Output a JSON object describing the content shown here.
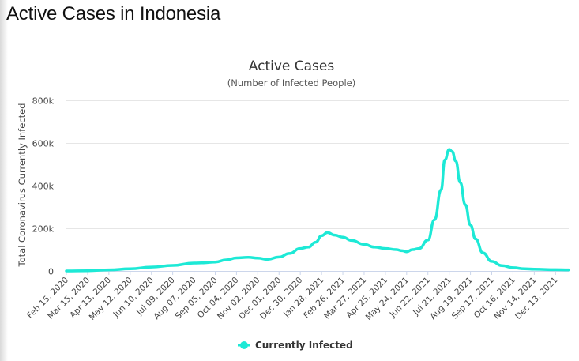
{
  "page": {
    "title": "Active Cases in Indonesia"
  },
  "colors": {
    "series": "#1de9d6",
    "grid": "#e6e6e6",
    "axis": "#ccd6eb"
  },
  "chart_data": {
    "type": "line",
    "title": "Active Cases",
    "subtitle": "(Number of Infected People)",
    "ylabel": "Total Coronavirus Currently Infected",
    "xlabel": "",
    "ylim": [
      0,
      800000
    ],
    "yticks": [
      0,
      200000,
      400000,
      600000,
      800000
    ],
    "ytick_labels": [
      "0",
      "200k",
      "400k",
      "600k",
      "800k"
    ],
    "x_range": [
      "Feb 15, 2020",
      "Dec 31, 2021"
    ],
    "xtick_labels": [
      "Feb 15, 2020",
      "Mar 15, 2020",
      "Apr 13, 2020",
      "May 12, 2020",
      "Jun 10, 2020",
      "Jul 09, 2020",
      "Aug 07, 2020",
      "Sep 05, 2020",
      "Oct 04, 2020",
      "Nov 02, 2020",
      "Dec 01, 2020",
      "Dec 30, 2020",
      "Jan 28, 2021",
      "Feb 26, 2021",
      "Mar 27, 2021",
      "Apr 25, 2021",
      "May 24, 2021",
      "Jun 22, 2021",
      "Jul 21, 2021",
      "Aug 19, 2021",
      "Sep 17, 2021",
      "Oct 16, 2021",
      "Nov 14, 2021",
      "Dec 13, 2021"
    ],
    "legend": {
      "label": "Currently Infected",
      "position": "bottom-center"
    },
    "series": [
      {
        "name": "Currently Infected",
        "x": [
          "Feb 15, 2020",
          "Mar 15, 2020",
          "Apr 13, 2020",
          "May 12, 2020",
          "Jun 10, 2020",
          "Jul 09, 2020",
          "Aug 07, 2020",
          "Aug 20, 2020",
          "Sep 05, 2020",
          "Sep 20, 2020",
          "Oct 04, 2020",
          "Oct 20, 2020",
          "Nov 02, 2020",
          "Nov 15, 2020",
          "Dec 01, 2020",
          "Dec 15, 2020",
          "Dec 30, 2020",
          "Jan 10, 2021",
          "Jan 20, 2021",
          "Jan 28, 2021",
          "Feb 05, 2021",
          "Feb 15, 2021",
          "Feb 26, 2021",
          "Mar 10, 2021",
          "Mar 27, 2021",
          "Apr 10, 2021",
          "Apr 25, 2021",
          "May 10, 2021",
          "May 18, 2021",
          "May 24, 2021",
          "Jun 01, 2021",
          "Jun 10, 2021",
          "Jun 22, 2021",
          "Jul 01, 2021",
          "Jul 10, 2021",
          "Jul 15, 2021",
          "Jul 21, 2021",
          "Jul 25, 2021",
          "Jul 30, 2021",
          "Aug 05, 2021",
          "Aug 12, 2021",
          "Aug 19, 2021",
          "Aug 26, 2021",
          "Sep 05, 2021",
          "Sep 17, 2021",
          "Oct 01, 2021",
          "Oct 16, 2021",
          "Nov 01, 2021",
          "Nov 14, 2021",
          "Dec 13, 2021",
          "Dec 31, 2021"
        ],
        "values": [
          0,
          1000,
          5000,
          10000,
          18000,
          26000,
          37000,
          38000,
          42000,
          52000,
          61000,
          64000,
          60000,
          54000,
          65000,
          82000,
          105000,
          112000,
          135000,
          165000,
          180000,
          168000,
          158000,
          143000,
          125000,
          112000,
          105000,
          100000,
          95000,
          90000,
          100000,
          105000,
          145000,
          240000,
          380000,
          520000,
          570000,
          560000,
          515000,
          415000,
          310000,
          215000,
          150000,
          85000,
          45000,
          25000,
          15000,
          10000,
          8000,
          6000,
          5000
        ]
      }
    ]
  }
}
